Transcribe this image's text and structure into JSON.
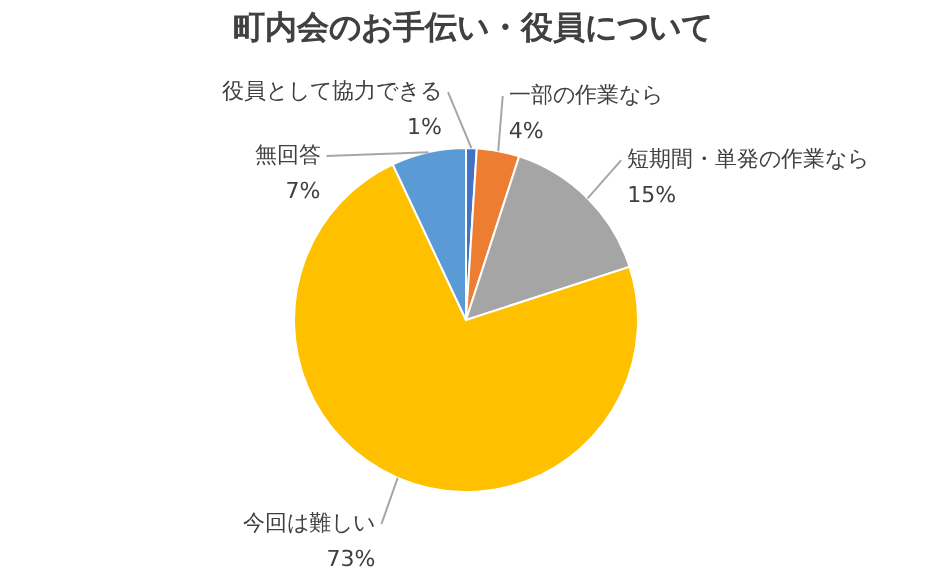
{
  "chart_data": {
    "type": "pie",
    "title": "町内会のお手伝い・役員について",
    "categories": [
      "役員として協力できる",
      "一部の作業なら",
      "短期間・単発の作業なら",
      "今回は難しい",
      "無回答"
    ],
    "values": [
      1,
      4,
      15,
      73,
      7
    ],
    "value_labels": [
      "1%",
      "4%",
      "15%",
      "73%",
      "7%"
    ],
    "colors": [
      "#4472c4",
      "#ed7d31",
      "#a5a5a5",
      "#ffc000",
      "#5b9bd5"
    ],
    "legend": false
  }
}
